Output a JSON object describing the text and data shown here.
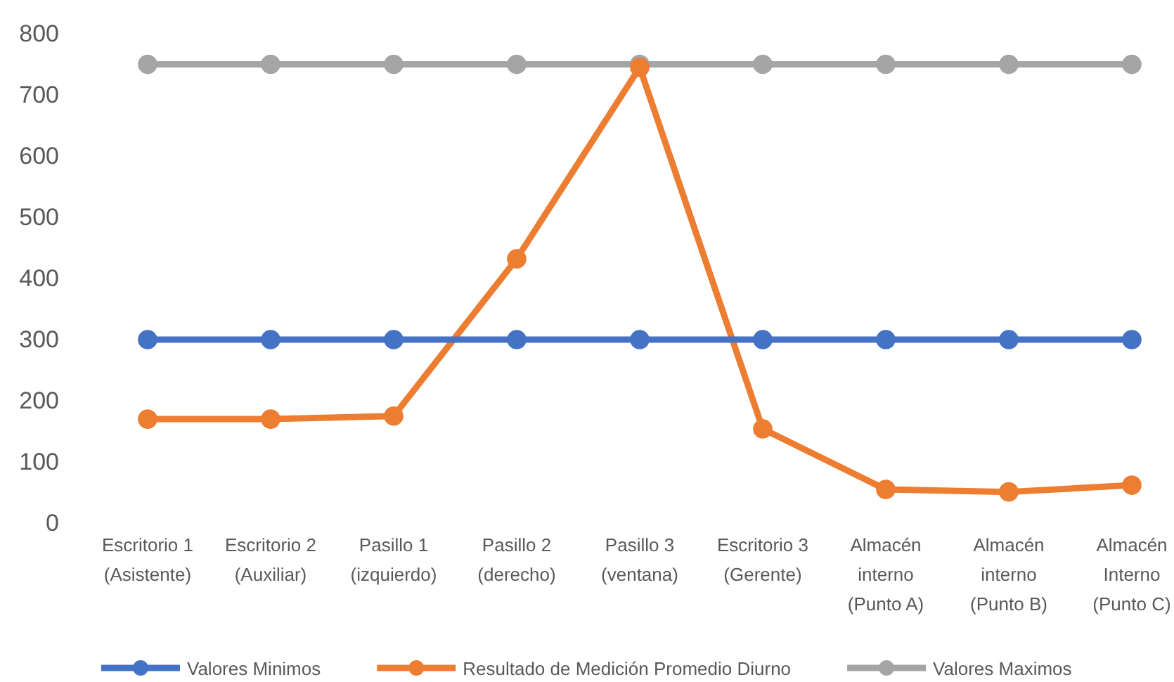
{
  "chart_data": {
    "type": "line",
    "categories": [
      "Escritorio 1 (Asistente)",
      "Escritorio 2 (Auxiliar)",
      "Pasillo 1 (izquierdo)",
      "Pasillo 2 (derecho)",
      "Pasillo 3 (ventana)",
      "Escritorio 3 (Gerente)",
      "Almacén interno (Punto A)",
      "Almacén interno (Punto B)",
      "Almacén Interno (Punto C)"
    ],
    "series": [
      {
        "name": "Valores Minimos",
        "color": "#4472c4",
        "values": [
          300,
          300,
          300,
          300,
          300,
          300,
          300,
          300,
          300
        ]
      },
      {
        "name": "Resultado de Medición Promedio Diurno",
        "color": "#ed7d31",
        "values": [
          170,
          170,
          175,
          432,
          745,
          154,
          55,
          51,
          62
        ]
      },
      {
        "name": "Valores Maximos",
        "color": "#a5a5a5",
        "values": [
          750,
          750,
          750,
          750,
          750,
          750,
          750,
          750,
          750
        ]
      }
    ],
    "ylim": [
      0,
      800
    ],
    "yticks": [
      0,
      100,
      200,
      300,
      400,
      500,
      600,
      700,
      800
    ],
    "grid": false,
    "legend": "bottom",
    "marker": "circle",
    "line_style": "solid"
  }
}
